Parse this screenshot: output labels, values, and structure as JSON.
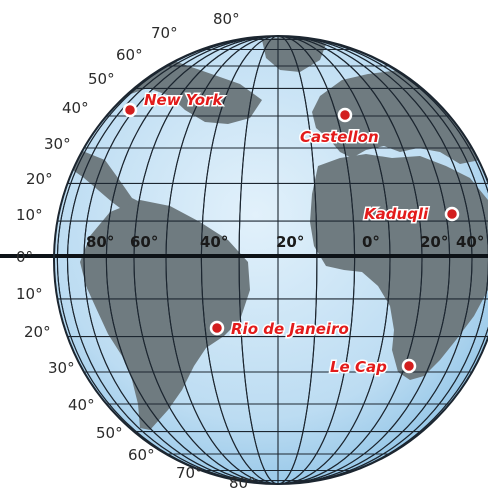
{
  "colors": {
    "ocean": "#cfe7f7",
    "ocean_edge": "#8fc3e6",
    "land": "#6f7b80",
    "grid": "#1c2630",
    "equator": "#0d1217",
    "city_marker": "#d21e1e",
    "city_label": "#e31b1b",
    "label_outline": "#ffffff"
  },
  "latitude_labels": {
    "north": [
      "80°",
      "70°",
      "60°",
      "50°",
      "40°",
      "30°",
      "20°",
      "10°"
    ],
    "equator": "0°",
    "south": [
      "10°",
      "20°",
      "30°",
      "40°",
      "50°",
      "60°",
      "70°",
      "80°"
    ]
  },
  "longitude_labels": [
    "80°",
    "60°",
    "40°",
    "20°",
    "0°",
    "20°",
    "40°"
  ],
  "cities": [
    {
      "name": "New York",
      "marker_icon": "location-dot-icon"
    },
    {
      "name": "Castellon",
      "marker_icon": "location-dot-icon"
    },
    {
      "name": "Kaduqli",
      "marker_icon": "location-dot-icon"
    },
    {
      "name": "Rio de Janeiro",
      "marker_icon": "location-dot-icon"
    },
    {
      "name": "Le Cap",
      "marker_icon": "location-dot-icon"
    }
  ]
}
